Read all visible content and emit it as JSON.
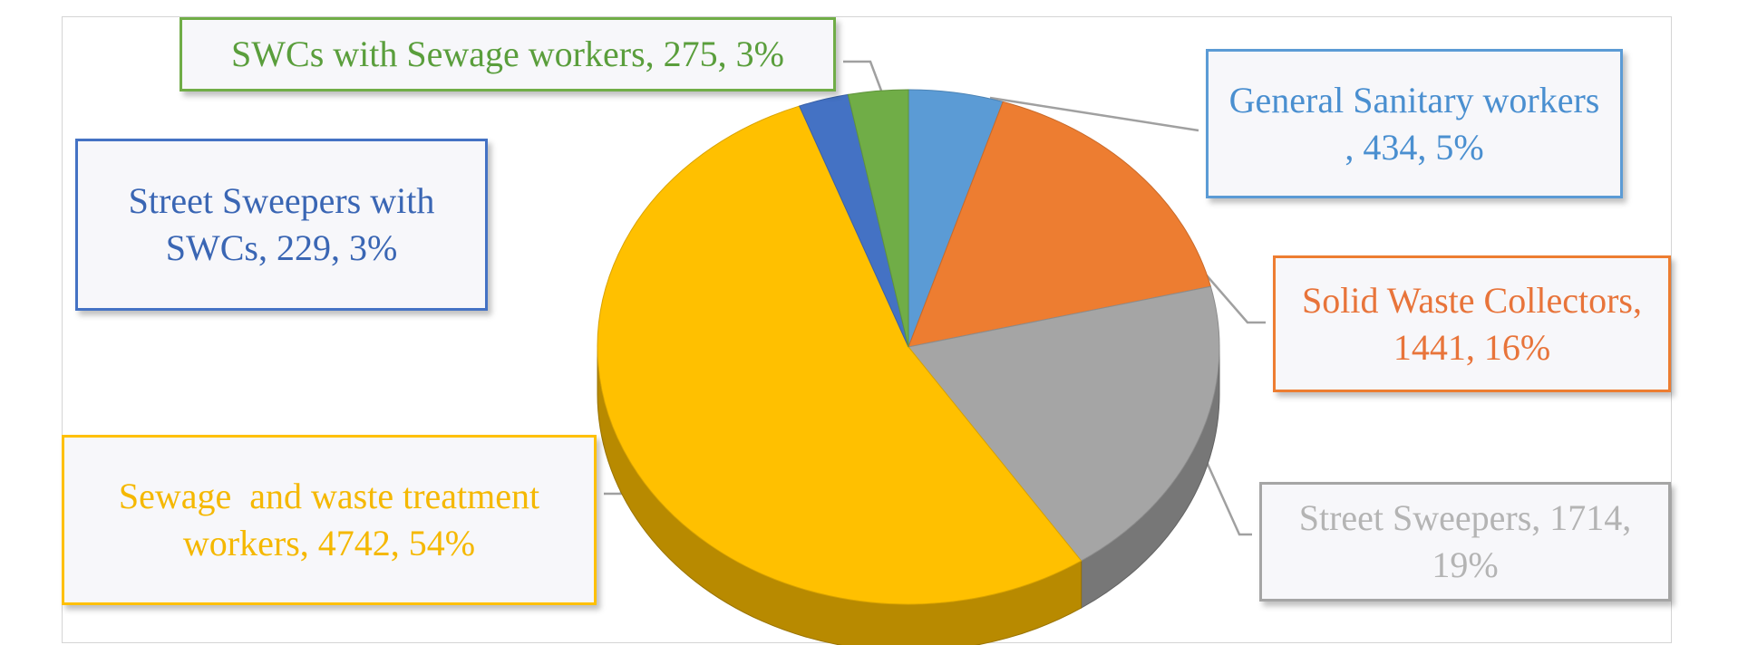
{
  "chart_data": {
    "type": "pie3d",
    "values": [
      434,
      1441,
      1714,
      4742,
      229,
      275
    ],
    "value_labels": [
      "General Sanitary workers , 434, 5%",
      "Solid Waste Collectors, 1441, 16%",
      "Street Sweepers, 1714, 19%",
      "Sewage  and waste treatment workers, 4742, 54%",
      "Street Sweepers with SWCs, 229, 3%",
      "SWCs with Sewage workers, 275, 3%"
    ],
    "colors": [
      "#5b9bd5",
      "#ed7d31",
      "#a5a5a5",
      "#ffc000",
      "#4472c4",
      "#70ad47"
    ],
    "label_colors": [
      "#4a8fd0",
      "#e8743a",
      "#b4b4b4",
      "#f5b800",
      "#3a66b4",
      "#5a9e3c"
    ]
  }
}
